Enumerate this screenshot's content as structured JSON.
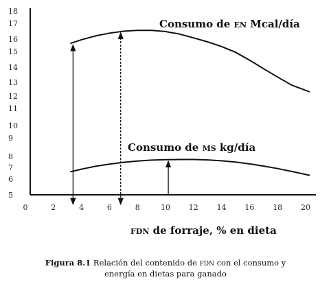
{
  "chart_data": {
    "type": "line",
    "xlabel": "FDN de forraje, % en dieta",
    "x_ticks": [
      0,
      2,
      4,
      6,
      8,
      10,
      12,
      14,
      16,
      18,
      20
    ],
    "y_ticks": [
      5,
      6,
      7,
      8,
      9,
      10,
      11,
      12,
      13,
      14,
      15,
      16,
      17,
      18
    ],
    "xlim": [
      0,
      21
    ],
    "ylim": [
      5,
      18
    ],
    "series": [
      {
        "name": "Consumo de EN Mcal/día",
        "x": [
          3.2,
          4,
          5,
          6,
          7,
          8,
          9,
          10,
          11,
          12,
          13,
          14,
          15,
          16,
          17,
          18,
          19,
          20.3
        ],
        "y": [
          15.65,
          15.95,
          16.2,
          16.38,
          16.5,
          16.55,
          16.55,
          16.48,
          16.32,
          16.08,
          15.78,
          15.4,
          14.95,
          14.45,
          13.9,
          13.35,
          12.8,
          12.3
        ]
      },
      {
        "name": "Consumo de MS kg/día",
        "x": [
          3.2,
          4,
          5,
          6,
          7,
          8,
          9,
          10,
          11,
          12,
          13,
          14,
          15,
          16,
          17,
          18,
          19,
          20.3
        ],
        "y": [
          6.62,
          6.85,
          7.1,
          7.3,
          7.46,
          7.58,
          7.66,
          7.7,
          7.72,
          7.72,
          7.68,
          7.6,
          7.48,
          7.32,
          7.12,
          6.9,
          6.65,
          6.32
        ]
      }
    ],
    "arrows": [
      {
        "x": 3.4,
        "from": 5,
        "to": 15.65,
        "style": "solid",
        "direction": "both"
      },
      {
        "x": 6.8,
        "from": 5,
        "to": 16.5,
        "style": "dashed",
        "direction": "both"
      },
      {
        "x": 10.2,
        "from": 5,
        "to": 7.7,
        "style": "solid",
        "direction": "up"
      }
    ]
  },
  "labels": {
    "en_curve": {
      "prefix": "Consumo de ",
      "abbr": "EN",
      "suffix": " Mcal/día"
    },
    "ms_curve": {
      "prefix": "Consumo de ",
      "abbr": "MS",
      "suffix": " kg/día"
    },
    "xlabel": {
      "abbr": "FDN",
      "rest": " de forraje, % en dieta"
    }
  },
  "caption": {
    "figure_label": "Figura 8.1",
    "line1_prefix": " Relación del contenido de ",
    "line1_abbr": "FDN",
    "line1_suffix": " con el consumo y",
    "line2": "energía en dietas para ganado"
  }
}
